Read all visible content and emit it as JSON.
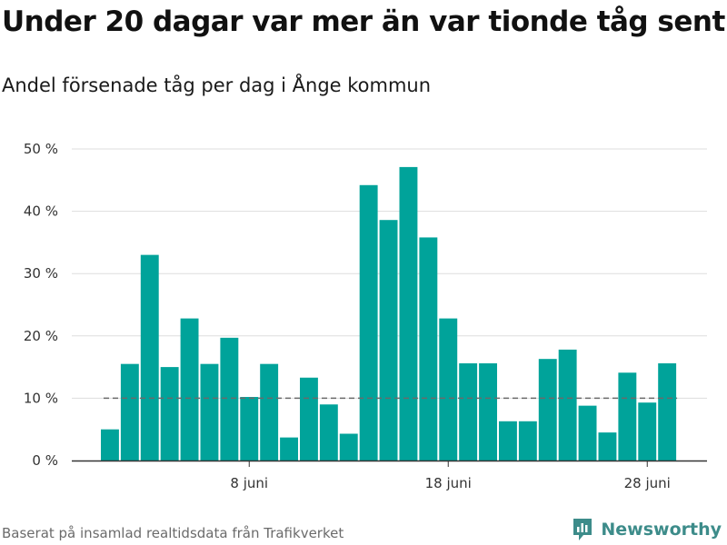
{
  "header": {
    "title": "Under 20 dagar var mer än var tionde tåg sent",
    "subtitle": "Andel försenade tåg per dag i Ånge kommun"
  },
  "footer": {
    "source": "Baserat på insamlad realtidsdata från Trafikverket",
    "brand": "Newsworthy"
  },
  "colors": {
    "bar": "#00a39a",
    "reference_line": "#6a6a6a",
    "grid": "#dddddd",
    "axis": "#333333",
    "brand": "#3d8c8a"
  },
  "chart_data": {
    "type": "bar",
    "x_unit": "day (juni)",
    "x": [
      1,
      2,
      3,
      4,
      5,
      6,
      7,
      8,
      9,
      10,
      11,
      12,
      13,
      14,
      15,
      16,
      17,
      18,
      19,
      20,
      21,
      22,
      23,
      24,
      25,
      26,
      27,
      28,
      29
    ],
    "values": [
      5,
      15.5,
      33,
      15,
      22.8,
      15.5,
      19.7,
      10.2,
      15.5,
      3.7,
      13.3,
      9,
      4.3,
      44.2,
      38.6,
      47.1,
      35.8,
      22.8,
      15.6,
      15.6,
      6.3,
      6.3,
      16.3,
      17.8,
      8.8,
      4.5,
      14.1,
      9.3,
      15.6
    ],
    "ylim": [
      0,
      50
    ],
    "y_ticks": [
      {
        "value": 0,
        "label": "0 %"
      },
      {
        "value": 10,
        "label": "10 %"
      },
      {
        "value": 20,
        "label": "20 %"
      },
      {
        "value": 30,
        "label": "30 %"
      },
      {
        "value": 40,
        "label": "40 %"
      },
      {
        "value": 50,
        "label": "50 %"
      }
    ],
    "x_ticks": [
      {
        "x": 8,
        "label": "8 juni"
      },
      {
        "x": 18,
        "label": "18 juni"
      },
      {
        "x": 28,
        "label": "28 juni"
      }
    ],
    "reference_line": {
      "value": 10,
      "style": "dashed"
    },
    "grid": true,
    "title": "",
    "xlabel": "",
    "ylabel": ""
  }
}
